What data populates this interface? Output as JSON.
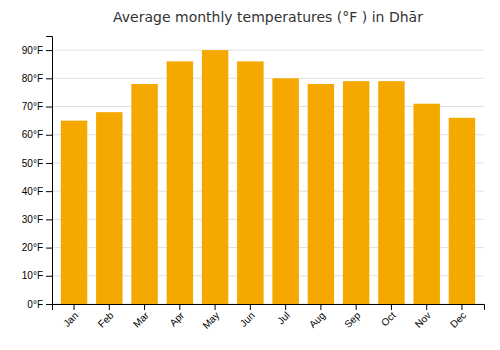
{
  "chart_data": {
    "type": "bar",
    "title": "Average monthly temperatures (°F ) in Dhār",
    "categories": [
      "Jan",
      "Feb",
      "Mar",
      "Apr",
      "May",
      "Jun",
      "Jul",
      "Aug",
      "Sep",
      "Oct",
      "Nov",
      "Dec"
    ],
    "values": [
      65,
      68,
      78,
      86,
      90,
      86,
      80,
      78,
      79,
      79,
      71,
      66
    ],
    "color": "#F5A800",
    "ylim": [
      0,
      95
    ],
    "yticks": [
      {
        "value": 0,
        "label": "0°F"
      },
      {
        "value": 10,
        "label": "10°F"
      },
      {
        "value": 20,
        "label": "20°F"
      },
      {
        "value": 30,
        "label": "30°F"
      },
      {
        "value": 40,
        "label": "40°F"
      },
      {
        "value": 50,
        "label": "50°F"
      },
      {
        "value": 60,
        "label": "60°F"
      },
      {
        "value": 70,
        "label": "70°F"
      },
      {
        "value": 80,
        "label": "80°F"
      },
      {
        "value": 90,
        "label": "90°F"
      }
    ],
    "grid": true
  }
}
